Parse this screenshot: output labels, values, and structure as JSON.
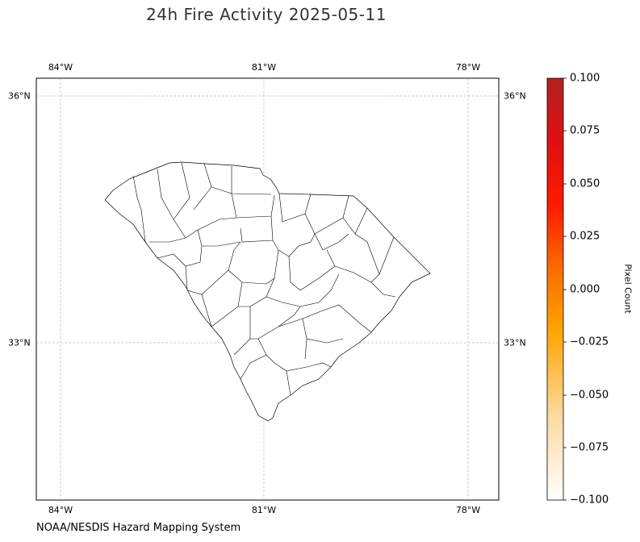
{
  "title": "24h Fire Activity 2025-05-11",
  "credit": "NOAA/NESDIS Hazard Mapping System",
  "map": {
    "lon_ticks": [
      "84°W",
      "81°W",
      "78°W"
    ],
    "lat_ticks": [
      "36°N",
      "33°N"
    ],
    "gridlines": true,
    "region": "South Carolina counties"
  },
  "colorbar": {
    "title": "Pixel Count",
    "ticks": [
      "0.100",
      "0.075",
      "0.050",
      "0.025",
      "0.000",
      "−0.025",
      "−0.050",
      "−0.075",
      "−0.100"
    ],
    "colors": [
      "#b22222",
      "#ff0000",
      "#ff6a00",
      "#ffa500",
      "#fff5e6"
    ]
  }
}
